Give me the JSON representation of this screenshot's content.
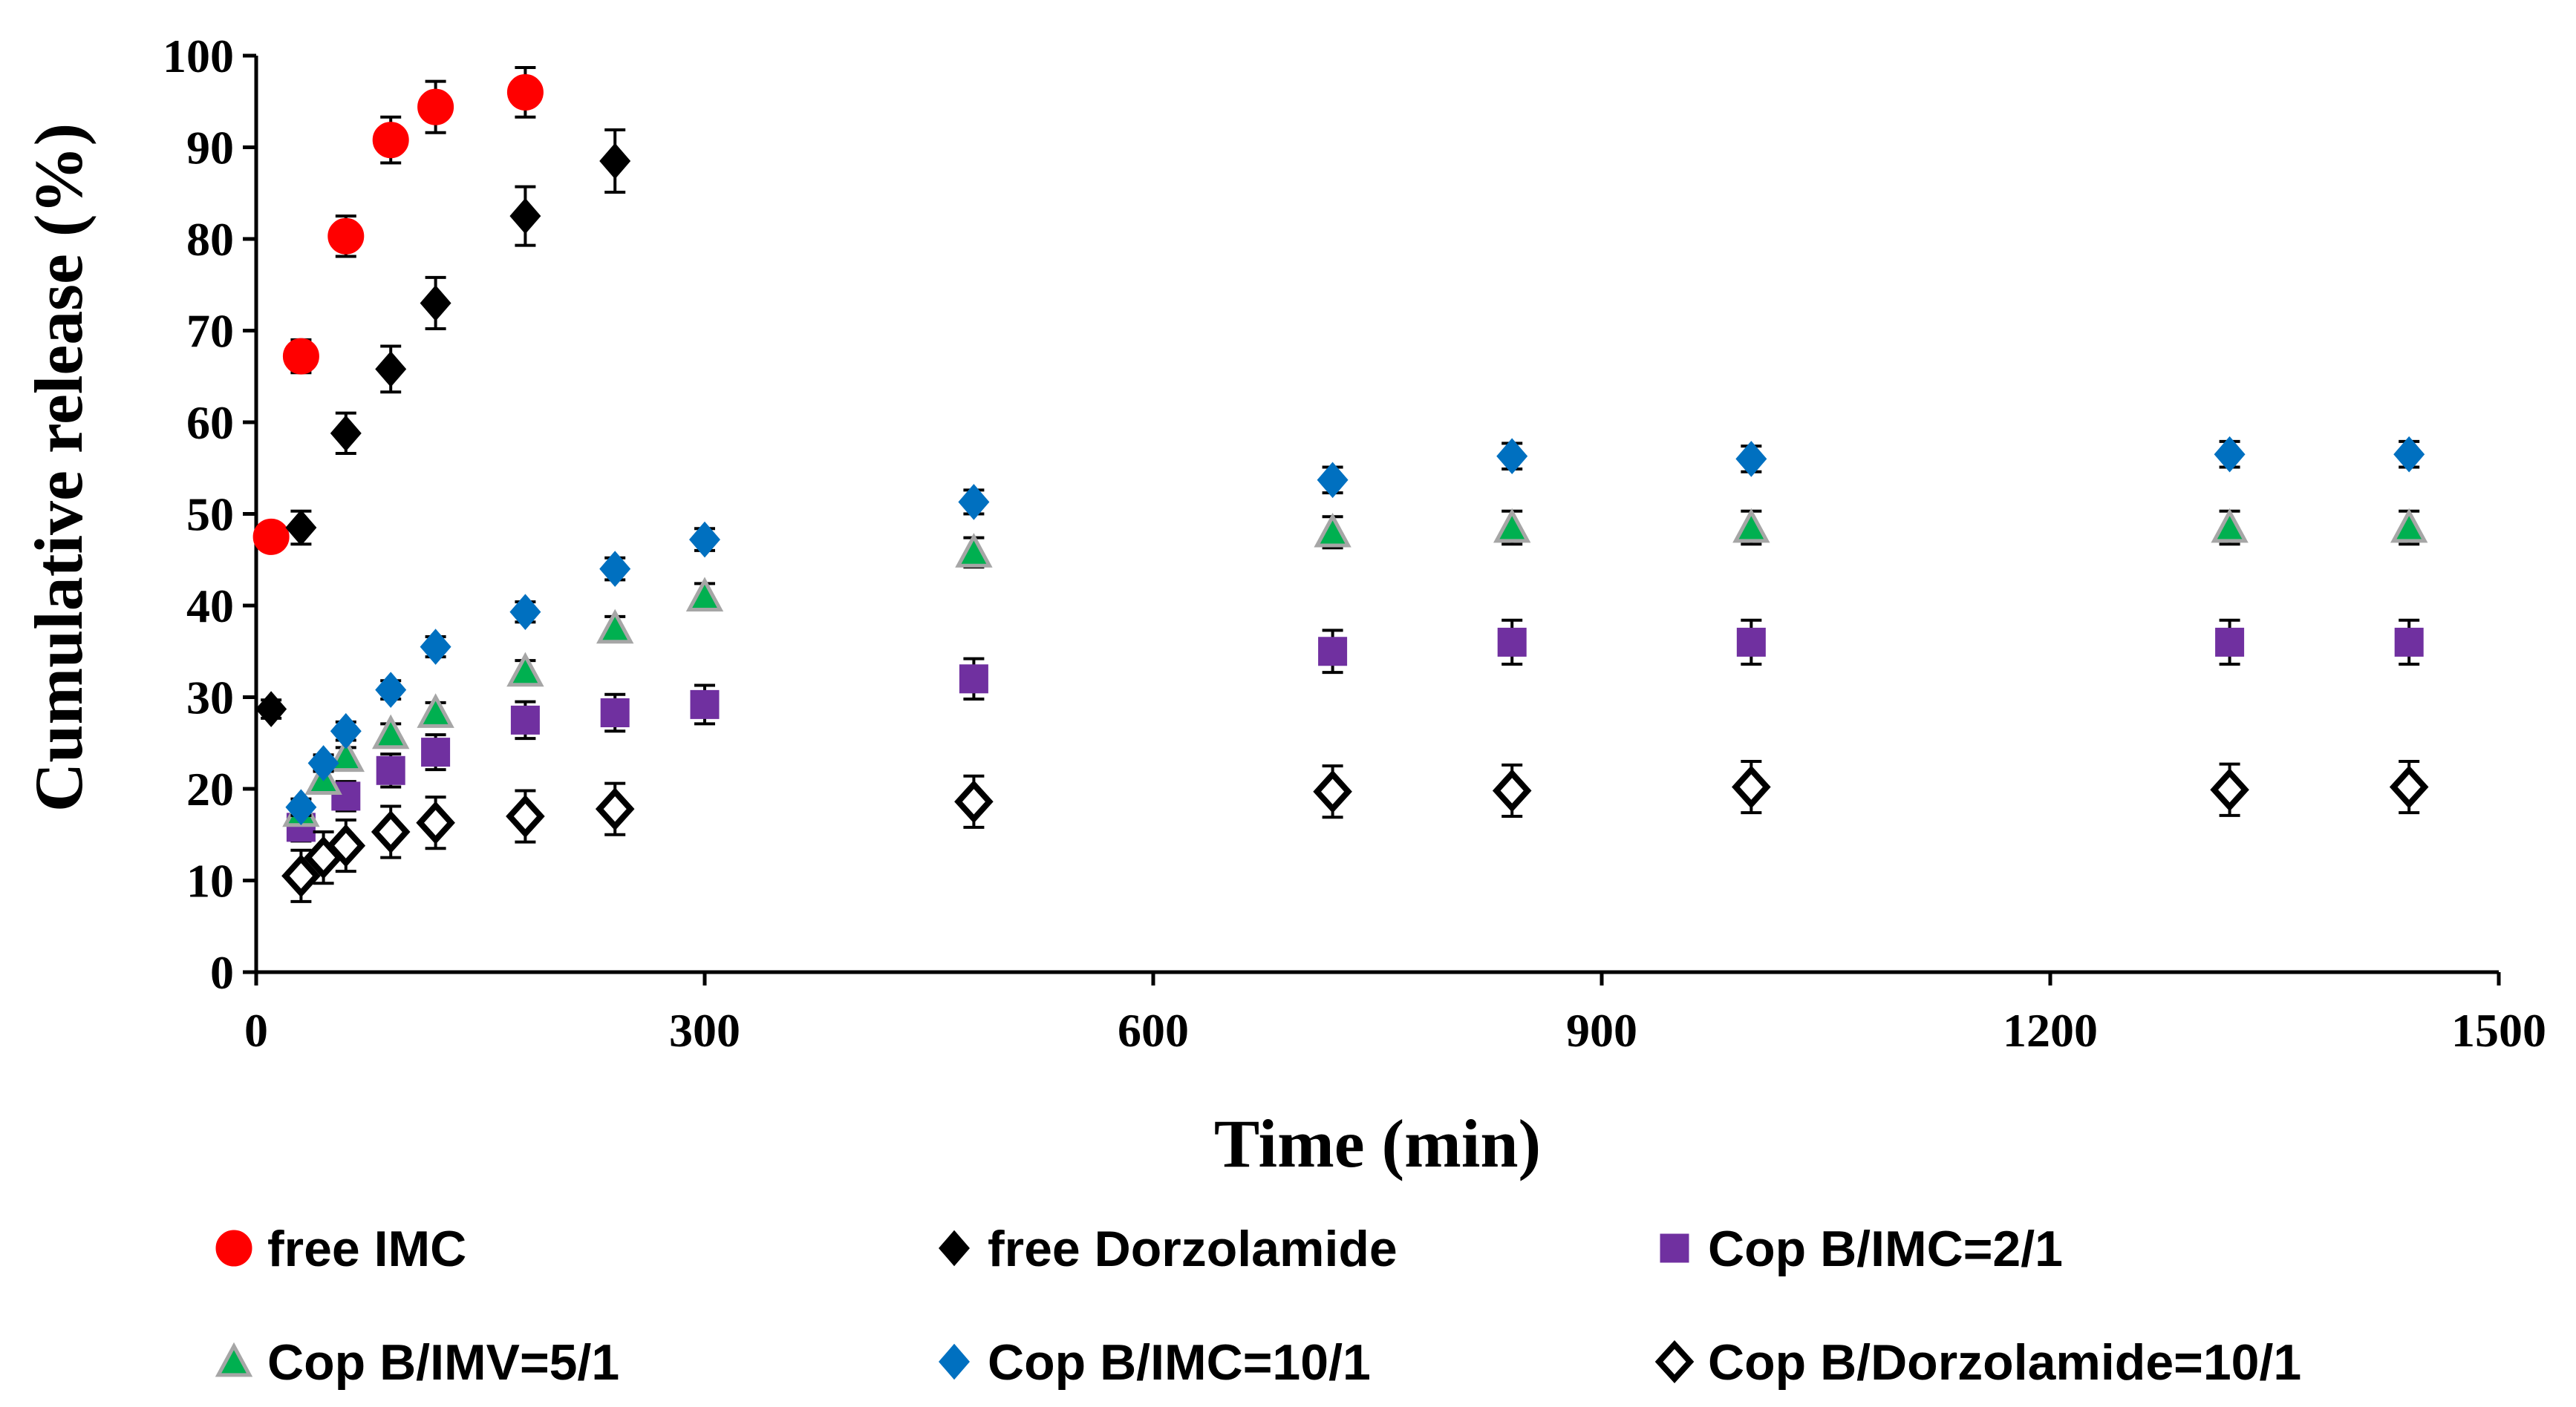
{
  "chart_data": {
    "type": "scatter",
    "title": "",
    "xlabel": "Time (min)",
    "ylabel": "Cumulative release (%)",
    "xlim": [
      0,
      1500
    ],
    "ylim": [
      0,
      100
    ],
    "xticks": [
      0,
      300,
      600,
      900,
      1200,
      1500
    ],
    "yticks": [
      0,
      10,
      20,
      30,
      40,
      50,
      60,
      70,
      80,
      90,
      100
    ],
    "grid": false,
    "legend_position": "bottom",
    "series": [
      {
        "name": "free IMC",
        "marker": "circle",
        "color": "#ff0000",
        "stroke": "#ff0000",
        "x": [
          10,
          30,
          60,
          90,
          120,
          180
        ],
        "y": [
          47.5,
          67.2,
          80.3,
          90.8,
          94.4,
          96.0
        ],
        "err": [
          1.2,
          1.8,
          2.2,
          2.5,
          2.8,
          2.7
        ]
      },
      {
        "name": "free Dorzolamide",
        "marker": "diamond",
        "color": "#000000",
        "stroke": "#000000",
        "x": [
          10,
          30,
          60,
          90,
          120,
          180,
          240
        ],
        "y": [
          28.7,
          48.5,
          58.8,
          65.8,
          73.0,
          82.5,
          88.5
        ],
        "err": [
          1.0,
          1.8,
          2.2,
          2.5,
          2.8,
          3.2,
          3.4
        ]
      },
      {
        "name": "Cop B/IMC=2/1",
        "marker": "square",
        "color": "#7030a0",
        "stroke": "#7030a0",
        "x": [
          30,
          60,
          90,
          120,
          180,
          240,
          300,
          480,
          720,
          840,
          1000,
          1320,
          1440
        ],
        "y": [
          15.8,
          19.2,
          22.0,
          24.0,
          27.5,
          28.3,
          29.2,
          32.0,
          35.0,
          36.0,
          36.0,
          36.0,
          36.0
        ],
        "err": [
          1.5,
          1.6,
          1.8,
          1.9,
          2.0,
          2.0,
          2.1,
          2.2,
          2.3,
          2.4,
          2.4,
          2.4,
          2.4
        ]
      },
      {
        "name": "Cop B/IMV=5/1",
        "marker": "triangle",
        "color": "#00b050",
        "stroke": "#a6a6a6",
        "x": [
          30,
          45,
          60,
          90,
          120,
          180,
          240,
          300,
          480,
          720,
          840,
          1000,
          1320,
          1440
        ],
        "y": [
          17.5,
          21.0,
          23.5,
          26.0,
          28.3,
          32.8,
          37.5,
          41.0,
          45.8,
          48.0,
          48.5,
          48.5,
          48.5,
          48.5
        ],
        "err": [
          1.0,
          1.0,
          1.0,
          1.1,
          1.1,
          1.2,
          1.3,
          1.4,
          1.6,
          1.7,
          1.8,
          1.8,
          1.8,
          1.8
        ]
      },
      {
        "name": "Cop B/IMC=10/1",
        "marker": "diamond",
        "color": "#0070c0",
        "stroke": "#0070c0",
        "x": [
          30,
          45,
          60,
          90,
          120,
          180,
          240,
          300,
          480,
          720,
          840,
          1000,
          1320,
          1440
        ],
        "y": [
          18.0,
          22.8,
          26.3,
          30.8,
          35.5,
          39.3,
          44.0,
          47.2,
          51.3,
          53.7,
          56.3,
          56.0,
          56.5,
          56.5
        ],
        "err": [
          0.9,
          0.9,
          1.0,
          1.0,
          1.1,
          1.1,
          1.2,
          1.2,
          1.3,
          1.4,
          1.4,
          1.4,
          1.4,
          1.4
        ]
      },
      {
        "name": "Cop B/Dorzolamide=10/1",
        "marker": "diamond-open",
        "color": "#ffffff",
        "stroke": "#000000",
        "x": [
          30,
          45,
          60,
          90,
          120,
          180,
          240,
          480,
          720,
          840,
          1000,
          1320,
          1440
        ],
        "y": [
          10.5,
          12.5,
          13.8,
          15.3,
          16.3,
          17.0,
          17.8,
          18.6,
          19.7,
          19.8,
          20.2,
          19.9,
          20.2
        ],
        "err": [
          2.8,
          2.8,
          2.8,
          2.8,
          2.8,
          2.8,
          2.8,
          2.8,
          2.8,
          2.8,
          2.8,
          2.8,
          2.8
        ]
      }
    ]
  }
}
